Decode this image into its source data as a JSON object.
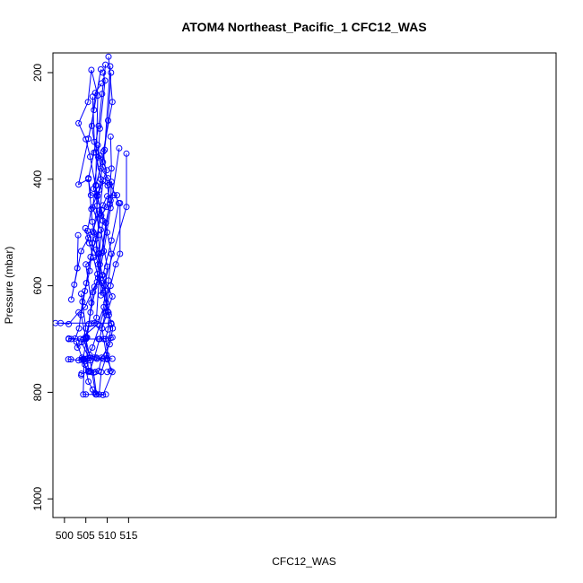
{
  "chart_data": {
    "type": "line",
    "title": "ATOM4 Northeast_Pacific_1 CFC12_WAS",
    "xlabel": "CFC12_WAS",
    "ylabel": "Pressure (mbar)",
    "xlim": [
      497.3,
      615.0
    ],
    "ylim": [
      1035,
      163
    ],
    "y_inverted": true,
    "x_ticks": [
      500,
      505,
      510,
      515
    ],
    "y_ticks": [
      200,
      400,
      600,
      800,
      1000
    ],
    "series_color": "#0000ff",
    "series": [
      {
        "points": [
          [
            514.5,
            352
          ],
          [
            514.5,
            452
          ],
          [
            508.5,
            618
          ],
          [
            508.0,
            505
          ],
          [
            507.3,
            412
          ],
          [
            507.8,
            243
          ],
          [
            506.3,
            195
          ],
          [
            505.5,
            255
          ],
          [
            503.3,
            295
          ],
          [
            505.0,
            325
          ],
          [
            506.0,
            358
          ],
          [
            507.7,
            432
          ],
          [
            509.0,
            403
          ],
          [
            507.4,
            532
          ],
          [
            508.8,
            580
          ],
          [
            511.2,
            620
          ],
          [
            509.8,
            655
          ],
          [
            508.8,
            680
          ],
          [
            509.2,
            700
          ],
          [
            510.0,
            738
          ],
          [
            511.2,
            762
          ],
          [
            509.0,
            805
          ],
          [
            507.3,
            804
          ],
          [
            506.0,
            740
          ],
          [
            504.0,
            706
          ],
          [
            505.0,
            700
          ],
          [
            508.0,
            700
          ],
          [
            510.8,
            698
          ],
          [
            511.2,
            697
          ]
        ]
      },
      {
        "points": [
          [
            510.3,
            170
          ],
          [
            511.2,
            255
          ],
          [
            509.1,
            348
          ],
          [
            510.6,
            447
          ],
          [
            508.8,
            538
          ],
          [
            505.0,
            560
          ],
          [
            506.3,
            632
          ],
          [
            505.7,
            672
          ],
          [
            504.9,
            697
          ],
          [
            506.0,
            735
          ],
          [
            504.4,
            738
          ],
          [
            504.0,
            739
          ],
          [
            505.6,
            760
          ],
          [
            506.8,
            763
          ],
          [
            507.5,
            804
          ],
          [
            505.0,
            804
          ],
          [
            504.4,
            804
          ],
          [
            504.6,
            738
          ],
          [
            503.3,
            740
          ],
          [
            501.5,
            738
          ],
          [
            500.9,
            738
          ]
        ]
      },
      {
        "points": [
          [
            510.7,
            188
          ],
          [
            509.4,
            345
          ],
          [
            507.4,
            411
          ],
          [
            506.6,
            453
          ],
          [
            508.5,
            495
          ],
          [
            510.0,
            564
          ],
          [
            509.2,
            640
          ],
          [
            507.8,
            672
          ],
          [
            503.7,
            700
          ],
          [
            501.0,
            699
          ]
        ]
      },
      {
        "points": [
          [
            509.0,
            200
          ],
          [
            509.5,
            215
          ],
          [
            508.3,
            305
          ],
          [
            507.9,
            359
          ],
          [
            506.8,
            418
          ],
          [
            508.7,
            458
          ],
          [
            510.0,
            500
          ],
          [
            511.0,
            540
          ],
          [
            510.3,
            590
          ],
          [
            509.8,
            632
          ],
          [
            508.2,
            675
          ],
          [
            506.5,
            716
          ],
          [
            505.2,
            737
          ],
          [
            504.6,
            739
          ]
        ]
      },
      {
        "points": [
          [
            508.5,
            194
          ],
          [
            506.9,
            270
          ],
          [
            505.6,
            324
          ],
          [
            503.3,
            410
          ],
          [
            505.6,
            400
          ],
          [
            506.2,
            430
          ],
          [
            507.7,
            430
          ],
          [
            509.0,
            478
          ],
          [
            508.1,
            540
          ],
          [
            507.6,
            593
          ],
          [
            506.1,
            650
          ],
          [
            505.3,
            697
          ],
          [
            504.3,
            738
          ],
          [
            504.8,
            742
          ]
        ]
      },
      {
        "points": [
          [
            507.8,
            336
          ],
          [
            508.5,
            380
          ],
          [
            510.2,
            398
          ],
          [
            512.7,
            445
          ],
          [
            511.0,
            515
          ],
          [
            509.0,
            580
          ],
          [
            507.0,
            602
          ],
          [
            504.8,
            640
          ],
          [
            503.3,
            650
          ],
          [
            501.0,
            672
          ],
          [
            499.1,
            670
          ],
          [
            497.9,
            670
          ],
          [
            510.9,
            670
          ]
        ]
      },
      {
        "points": [
          [
            512.8,
            342
          ],
          [
            510.8,
            454
          ],
          [
            509.2,
            535
          ],
          [
            507.9,
            585
          ],
          [
            506.7,
            612
          ],
          [
            505.2,
            698
          ],
          [
            503.0,
            716
          ],
          [
            502.8,
            705
          ],
          [
            504.1,
            735
          ],
          [
            504.8,
            748
          ],
          [
            505.6,
            780
          ],
          [
            506.6,
            795
          ],
          [
            507.1,
            801
          ]
        ]
      },
      {
        "points": [
          [
            510.8,
            320
          ],
          [
            511.0,
            380
          ],
          [
            510.6,
            410
          ],
          [
            509.9,
            452
          ],
          [
            508.6,
            468
          ],
          [
            507.4,
            512
          ],
          [
            506.1,
            546
          ],
          [
            505.1,
            595
          ],
          [
            504.2,
            630
          ],
          [
            503.4,
            680
          ],
          [
            502.5,
            699
          ],
          [
            501.6,
            700
          ],
          [
            501.0,
            700
          ]
        ]
      },
      {
        "points": [
          [
            513.0,
            445
          ],
          [
            513.0,
            540
          ],
          [
            512.0,
            560
          ],
          [
            510.8,
            600
          ],
          [
            509.6,
            650
          ],
          [
            508.2,
            700
          ],
          [
            507.0,
            735
          ],
          [
            505.9,
            760
          ],
          [
            504.0,
            765
          ],
          [
            503.9,
            768
          ]
        ]
      },
      {
        "points": [
          [
            506.6,
            245
          ],
          [
            507.0,
            330
          ],
          [
            508.2,
            356
          ],
          [
            509.9,
            383
          ],
          [
            508.1,
            420
          ],
          [
            506.3,
            456
          ],
          [
            505.4,
            497
          ],
          [
            506.5,
            520
          ],
          [
            507.9,
            560
          ],
          [
            509.0,
            613
          ],
          [
            510.3,
            650
          ],
          [
            511.3,
            680
          ],
          [
            510.6,
            710
          ],
          [
            508.7,
            735
          ],
          [
            508.0,
            760
          ],
          [
            507.2,
            762
          ],
          [
            506.3,
            762
          ]
        ]
      },
      {
        "points": [
          [
            510.9,
            200
          ],
          [
            510.2,
            290
          ],
          [
            509.0,
            368
          ],
          [
            507.6,
            450
          ],
          [
            506.8,
            500
          ],
          [
            505.9,
            572
          ],
          [
            504.8,
            610
          ],
          [
            503.9,
            655
          ],
          [
            505.0,
            698
          ],
          [
            505.6,
            760
          ],
          [
            505.6,
            762
          ]
        ]
      },
      {
        "points": [
          [
            509.6,
            185
          ],
          [
            508.8,
            240
          ],
          [
            508.0,
            300
          ],
          [
            506.9,
            350
          ],
          [
            505.6,
            398
          ],
          [
            506.5,
            480
          ],
          [
            507.9,
            540
          ],
          [
            509.3,
            600
          ],
          [
            510.1,
            648
          ],
          [
            511.0,
            672
          ],
          [
            509.9,
            730
          ],
          [
            508.6,
            762
          ],
          [
            508.1,
            804
          ],
          [
            509.7,
            804
          ]
        ]
      },
      {
        "points": [
          [
            503.2,
            505
          ],
          [
            503.0,
            567
          ],
          [
            502.3,
            598
          ],
          [
            501.6,
            626
          ],
          [
            503.9,
            535
          ],
          [
            505.6,
            510
          ],
          [
            506.6,
            498
          ],
          [
            507.9,
            466
          ],
          [
            509.0,
            449
          ],
          [
            510.0,
            432
          ],
          [
            511.6,
            430
          ],
          [
            512.3,
            430
          ]
        ]
      },
      {
        "points": [
          [
            504.9,
            492
          ],
          [
            505.8,
            520
          ],
          [
            506.8,
            547
          ],
          [
            507.7,
            578
          ],
          [
            508.8,
            595
          ],
          [
            509.7,
            610
          ],
          [
            510.4,
            655
          ],
          [
            510.2,
            682
          ],
          [
            509.6,
            700
          ],
          [
            510.8,
            760
          ],
          [
            510.0,
            762
          ]
        ]
      },
      {
        "points": [
          [
            503.9,
            615
          ],
          [
            505.0,
            680
          ],
          [
            504.4,
            700
          ],
          [
            505.9,
            730
          ],
          [
            507.5,
            735
          ],
          [
            509.9,
            736
          ],
          [
            511.2,
            737
          ],
          [
            509.0,
            737
          ],
          [
            507.6,
            737
          ],
          [
            505.6,
            736
          ],
          [
            504.5,
            737
          ]
        ]
      },
      {
        "points": [
          [
            508.7,
            220
          ],
          [
            507.2,
            238
          ],
          [
            506.4,
            300
          ],
          [
            507.3,
            350
          ],
          [
            508.5,
            400
          ],
          [
            510.1,
            412
          ],
          [
            511.0,
            405
          ],
          [
            510.8,
            440
          ],
          [
            509.7,
            482
          ],
          [
            508.3,
            560
          ],
          [
            507.5,
            660
          ],
          [
            507.0,
            670
          ],
          [
            506.3,
            671
          ]
        ]
      }
    ]
  }
}
